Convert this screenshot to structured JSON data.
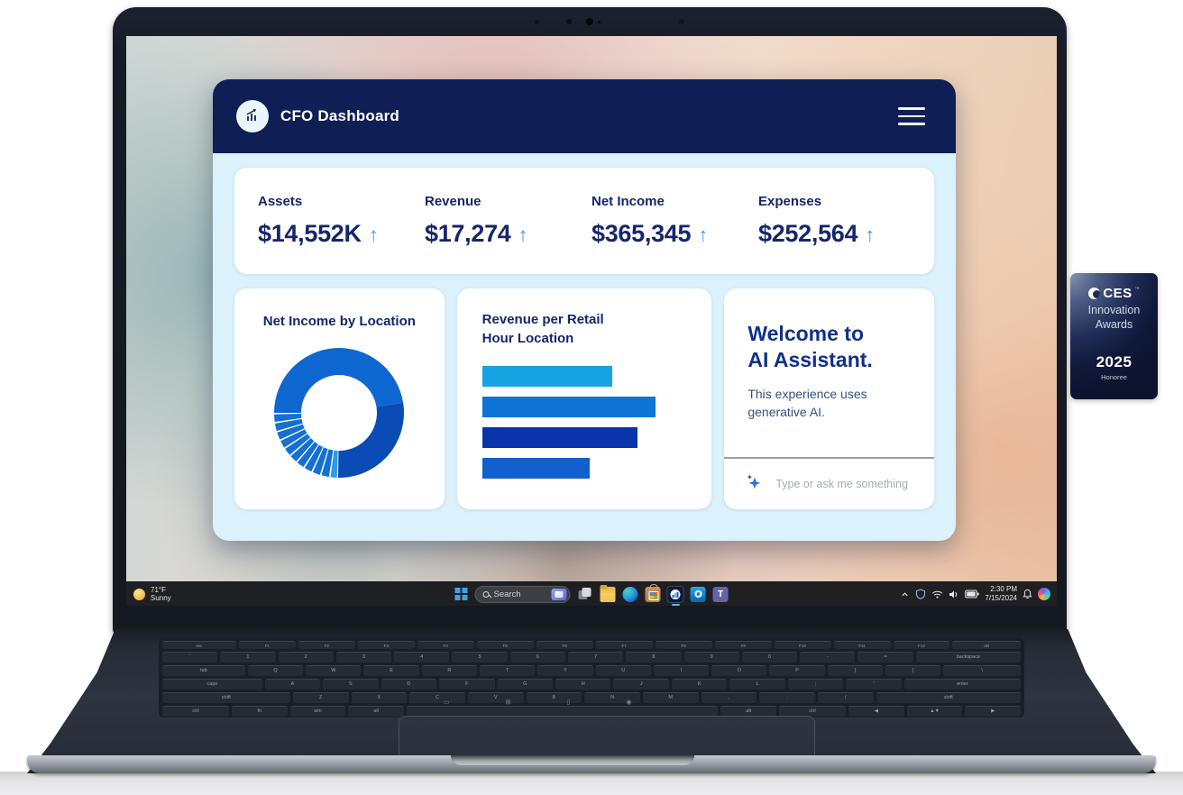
{
  "app": {
    "title": "CFO Dashboard",
    "kpis": [
      {
        "label": "Assets",
        "value": "$14,552K",
        "trend": "up"
      },
      {
        "label": "Revenue",
        "value": "$17,274",
        "trend": "up"
      },
      {
        "label": "Net Income",
        "value": "$365,345",
        "trend": "up"
      },
      {
        "label": "Expenses",
        "value": "$252,564",
        "trend": "up"
      }
    ],
    "trend_up_glyph": "↑",
    "ai_card": {
      "title_line1": "Welcome to",
      "title_line2": "AI Assistant.",
      "body_line1": "This experience uses",
      "body_line2": "generative AI.",
      "input_placeholder": "Type or ask me something"
    },
    "colors": {
      "header_navy": "#0F1F55",
      "body_bg": "#DBF1FB",
      "text_navy": "#15266B",
      "arrow_blue": "#3E9CEA"
    }
  },
  "chart_data": [
    {
      "type": "pie",
      "donut": true,
      "title": "Net Income by Location",
      "legend_position": "none",
      "slices": [
        {
          "pct": 47.5,
          "color": "#0E67D1"
        },
        {
          "pct": 28.0,
          "color": "#0A4BB6"
        },
        {
          "pct": 2.0,
          "color": "#2E9BE6"
        },
        {
          "pct": 2.25,
          "color": "#1470D3"
        },
        {
          "pct": 2.25,
          "color": "#1470D3"
        },
        {
          "pct": 2.25,
          "color": "#1470D3"
        },
        {
          "pct": 2.25,
          "color": "#1470D3"
        },
        {
          "pct": 2.25,
          "color": "#1470D3"
        },
        {
          "pct": 2.25,
          "color": "#1470D3"
        },
        {
          "pct": 2.25,
          "color": "#1470D3"
        },
        {
          "pct": 2.25,
          "color": "#1470D3"
        },
        {
          "pct": 2.25,
          "color": "#1470D3"
        },
        {
          "pct": 2.25,
          "color": "#1470D3"
        }
      ]
    },
    {
      "type": "bar",
      "orientation": "horizontal",
      "title": "Revenue per Retail Hour Location",
      "title_line1": "Revenue per Retail",
      "title_line2": "Hour Location",
      "axis_labels_visible": false,
      "bars": [
        {
          "value": 75,
          "color": "#16A3E2"
        },
        {
          "value": 100,
          "color": "#0E74D6"
        },
        {
          "value": 90,
          "color": "#0A34AC"
        },
        {
          "value": 62,
          "color": "#1160CE"
        }
      ],
      "note": "values are relative bar lengths, max = 100"
    }
  ],
  "taskbar": {
    "weather": {
      "temp": "71°F",
      "condition": "Sunny"
    },
    "search_placeholder": "Search",
    "apps": [
      "start",
      "search",
      "task-view",
      "file-explorer",
      "edge",
      "store",
      "cfo-dashboard",
      "outlook",
      "teams"
    ],
    "active_app": "cfo-dashboard",
    "tray_icons": [
      "chevron-up",
      "security",
      "wifi",
      "volume",
      "battery",
      "bell",
      "copilot"
    ],
    "time": "2:30 PM",
    "date": "7/15/2024"
  },
  "badge": {
    "brand": "CES",
    "tm": "™",
    "line1": "Innovation",
    "line2": "Awards",
    "year": "2025",
    "subtitle": "Honoree"
  },
  "laptop": {
    "keyboard_rows": [
      [
        {
          "l": "esc",
          "w": 1.3
        },
        {
          "l": "F1",
          "w": 1
        },
        {
          "l": "F2",
          "w": 1
        },
        {
          "l": "F3",
          "w": 1
        },
        {
          "l": "F4",
          "w": 1
        },
        {
          "l": "F5",
          "w": 1
        },
        {
          "l": "F6",
          "w": 1
        },
        {
          "l": "F7",
          "w": 1
        },
        {
          "l": "F8",
          "w": 1
        },
        {
          "l": "F9",
          "w": 1
        },
        {
          "l": "F10",
          "w": 1
        },
        {
          "l": "F11",
          "w": 1
        },
        {
          "l": "F12",
          "w": 1
        },
        {
          "l": "del",
          "w": 1.2
        }
      ],
      [
        {
          "l": "`",
          "w": 1
        },
        {
          "l": "1",
          "w": 1
        },
        {
          "l": "2",
          "w": 1
        },
        {
          "l": "3",
          "w": 1
        },
        {
          "l": "4",
          "w": 1
        },
        {
          "l": "5",
          "w": 1
        },
        {
          "l": "6",
          "w": 1
        },
        {
          "l": "7",
          "w": 1
        },
        {
          "l": "8",
          "w": 1
        },
        {
          "l": "9",
          "w": 1
        },
        {
          "l": "0",
          "w": 1
        },
        {
          "l": "-",
          "w": 1
        },
        {
          "l": "=",
          "w": 1
        },
        {
          "l": "backspace",
          "w": 1.9
        }
      ],
      [
        {
          "l": "tab",
          "w": 1.5
        },
        {
          "l": "Q",
          "w": 1
        },
        {
          "l": "W",
          "w": 1
        },
        {
          "l": "E",
          "w": 1
        },
        {
          "l": "R",
          "w": 1
        },
        {
          "l": "T",
          "w": 1
        },
        {
          "l": "Y",
          "w": 1
        },
        {
          "l": "U",
          "w": 1
        },
        {
          "l": "I",
          "w": 1
        },
        {
          "l": "O",
          "w": 1
        },
        {
          "l": "P",
          "w": 1
        },
        {
          "l": "[",
          "w": 1
        },
        {
          "l": "]",
          "w": 1
        },
        {
          "l": "\\",
          "w": 1.4
        }
      ],
      [
        {
          "l": "caps",
          "w": 1.8
        },
        {
          "l": "A",
          "w": 1
        },
        {
          "l": "S",
          "w": 1
        },
        {
          "l": "D",
          "w": 1
        },
        {
          "l": "F",
          "w": 1
        },
        {
          "l": "G",
          "w": 1
        },
        {
          "l": "H",
          "w": 1
        },
        {
          "l": "J",
          "w": 1
        },
        {
          "l": "K",
          "w": 1
        },
        {
          "l": "L",
          "w": 1
        },
        {
          "l": ";",
          "w": 1
        },
        {
          "l": "'",
          "w": 1
        },
        {
          "l": "enter",
          "w": 2.1
        }
      ],
      [
        {
          "l": "shift",
          "w": 2.3
        },
        {
          "l": "Z",
          "w": 1
        },
        {
          "l": "X",
          "w": 1
        },
        {
          "l": "C",
          "w": 1
        },
        {
          "l": "V",
          "w": 1
        },
        {
          "l": "B",
          "w": 1
        },
        {
          "l": "N",
          "w": 1
        },
        {
          "l": "M",
          "w": 1
        },
        {
          "l": ",",
          "w": 1
        },
        {
          "l": ".",
          "w": 1
        },
        {
          "l": "/",
          "w": 1
        },
        {
          "l": "shift",
          "w": 2.6
        }
      ],
      [
        {
          "l": "ctrl",
          "w": 1.2
        },
        {
          "l": "fn",
          "w": 1
        },
        {
          "l": "win",
          "w": 1
        },
        {
          "l": "alt",
          "w": 1
        },
        {
          "l": "",
          "w": 5.6
        },
        {
          "l": "alt",
          "w": 1
        },
        {
          "l": "ctrl",
          "w": 1.2
        },
        {
          "l": "◀",
          "w": 1
        },
        {
          "l": "▲▼",
          "w": 1
        },
        {
          "l": "▶",
          "w": 1
        }
      ]
    ]
  }
}
